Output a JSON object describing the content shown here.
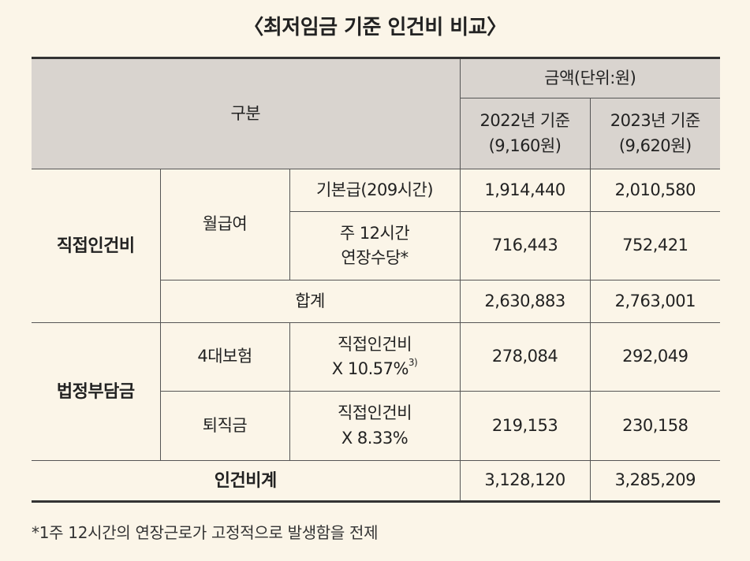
{
  "title": "〈최저임금 기준 인건비 비교〉",
  "header": {
    "category": "구분",
    "amount_unit": "금액(단위:원)",
    "col2022_year": "2022년 기준",
    "col2022_wage": "(9,160원)",
    "col2023_year": "2023년 기준",
    "col2023_wage": "(9,620원)"
  },
  "direct": {
    "label": "직접인건비",
    "monthly": "월급여",
    "base_label": "기본급(209시간)",
    "base_2022": "1,914,440",
    "base_2023": "2,010,580",
    "holiday_label_1": "주 12시간",
    "holiday_label_2": "연장수당*",
    "holiday_2022": "716,443",
    "holiday_2023": "752,421",
    "subtotal_label": "합계",
    "subtotal_2022": "2,630,883",
    "subtotal_2023": "2,763,001"
  },
  "statutory": {
    "label": "법정부담금",
    "insurance_label": "4대보험",
    "insurance_calc_1": "직접인건비",
    "insurance_calc_2": "X 10.57%",
    "insurance_note": "3)",
    "insurance_2022": "278,084",
    "insurance_2023": "292,049",
    "severance_label": "퇴직금",
    "severance_calc_1": "직접인건비",
    "severance_calc_2": "X 8.33%",
    "severance_2022": "219,153",
    "severance_2023": "230,158"
  },
  "total": {
    "label": "인건비계",
    "value_2022": "3,128,120",
    "value_2023": "3,285,209"
  },
  "footnote": "*1주 12시간의 연장근로가 고정적으로 발생함을 전제"
}
